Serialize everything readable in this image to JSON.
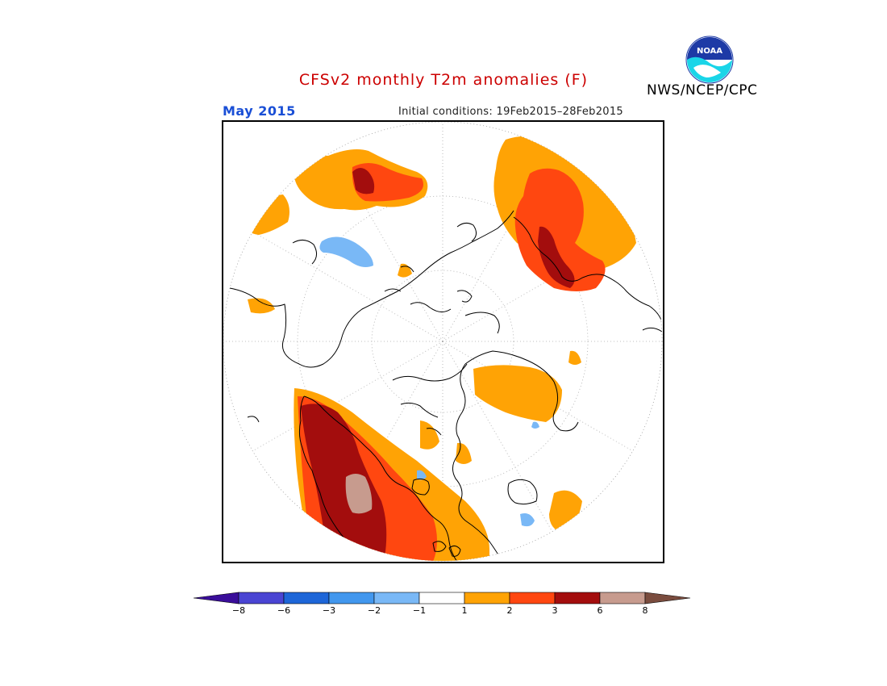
{
  "title": "CFSv2 monthly T2m anomalies (F)",
  "agency": "NWS/NCEP/CPC",
  "logo_text": "NOAA",
  "valid_month": "May 2015",
  "initial_conditions": "Initial conditions: 19Feb2015–28Feb2015",
  "colors": {
    "title": "#cc0000",
    "month": "#1a4fd6"
  },
  "colorbar": {
    "labels": [
      "−8",
      "−6",
      "−3",
      "−2",
      "−1",
      "1",
      "2",
      "3",
      "6",
      "8"
    ],
    "bins": [
      {
        "color": "#3a0e9a"
      },
      {
        "color": "#4a45d3"
      },
      {
        "color": "#1e66d8"
      },
      {
        "color": "#4297ee"
      },
      {
        "color": "#79b8f6"
      },
      {
        "color": "#ffffff"
      },
      {
        "color": "#ffa305"
      },
      {
        "color": "#ff4710"
      },
      {
        "color": "#a30d0d"
      },
      {
        "color": "#c79b8e"
      },
      {
        "color": "#7a4c3e"
      }
    ]
  }
}
